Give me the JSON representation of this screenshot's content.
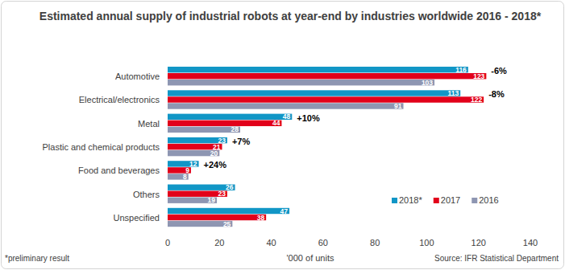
{
  "chart_data": {
    "type": "bar",
    "orientation": "horizontal",
    "title": "Estimated annual supply of industrial robots at year-end by industries worldwide 2016 - 2018*",
    "categories": [
      "Automotive",
      "Electrical/electronics",
      "Metal",
      "Plastic and chemical products",
      "Food and beverages",
      "Others",
      "Unspecified"
    ],
    "series": [
      {
        "name": "2018*",
        "color": "#1196c6",
        "values": [
          116,
          113,
          48,
          23,
          12,
          26,
          47
        ]
      },
      {
        "name": "2017",
        "color": "#e2001a",
        "values": [
          123,
          122,
          44,
          21,
          9,
          23,
          38
        ]
      },
      {
        "name": "2016",
        "color": "#8e96b2",
        "values": [
          103,
          91,
          28,
          20,
          8,
          19,
          25
        ]
      }
    ],
    "xlim": [
      0,
      140
    ],
    "xticks": [
      0,
      20,
      40,
      60,
      80,
      100,
      120,
      140
    ],
    "x_label": "'000 of units",
    "data_labels": true,
    "grid": false,
    "legend": "lower right",
    "annotations": [
      {
        "category": "Automotive",
        "text": "-6%"
      },
      {
        "category": "Electrical/electronics",
        "text": "-8%"
      },
      {
        "category": "Metal",
        "text": "+10%"
      },
      {
        "category": "Plastic and chemical products",
        "text": "+7%"
      },
      {
        "category": "Food and beverages",
        "text": "+24%"
      }
    ],
    "footnote": "*preliminary result",
    "source": "Source: IFR Statistical Department"
  }
}
